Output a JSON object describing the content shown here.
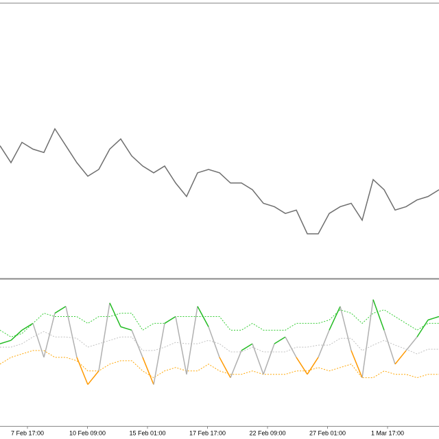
{
  "chart_data": [
    {
      "type": "line",
      "series": [
        {
          "color": "#6e6e6e",
          "values": [
            195,
            170,
            200,
            190,
            185,
            220,
            195,
            170,
            150,
            160,
            190,
            205,
            180,
            165,
            155,
            165,
            140,
            120,
            155,
            160,
            155,
            140,
            140,
            130,
            110,
            105,
            95,
            100,
            65,
            65,
            95,
            105,
            110,
            85,
            145,
            130,
            100,
            105,
            115,
            120,
            130
          ]
        }
      ],
      "ylim": [
        0,
        400
      ]
    },
    {
      "type": "oscillator",
      "series": [
        {
          "color": "#b0b0b0",
          "up_color": "#22bb22",
          "down_color": "#ff9900",
          "values": [
            120,
            125,
            140,
            150,
            100,
            165,
            175,
            100,
            60,
            80,
            180,
            145,
            140,
            100,
            60,
            150,
            160,
            75,
            175,
            145,
            100,
            70,
            110,
            120,
            75,
            120,
            130,
            100,
            75,
            100,
            140,
            175,
            110,
            70,
            185,
            140,
            90,
            110,
            130,
            155,
            160
          ]
        },
        {
          "color": "#33cc33",
          "dotted": true,
          "values": [
            140,
            130,
            135,
            150,
            165,
            160,
            160,
            160,
            150,
            160,
            160,
            165,
            165,
            140,
            150,
            150,
            160,
            160,
            160,
            160,
            160,
            140,
            140,
            150,
            140,
            140,
            140,
            150,
            150,
            150,
            155,
            170,
            165,
            150,
            165,
            170,
            160,
            150,
            140,
            150,
            150
          ]
        },
        {
          "color": "#c0c0c0",
          "dotted": true,
          "values": [
            115,
            115,
            120,
            130,
            138,
            130,
            130,
            128,
            115,
            120,
            125,
            130,
            130,
            110,
            110,
            115,
            122,
            120,
            120,
            125,
            120,
            108,
            108,
            115,
            108,
            108,
            108,
            115,
            115,
            118,
            118,
            128,
            128,
            110,
            118,
            125,
            118,
            112,
            105,
            112,
            112
          ]
        },
        {
          "color": "#ffa500",
          "dotted": true,
          "values": [
            90,
            100,
            105,
            110,
            110,
            100,
            100,
            95,
            80,
            80,
            90,
            95,
            95,
            80,
            70,
            80,
            85,
            80,
            80,
            90,
            80,
            75,
            75,
            80,
            75,
            75,
            75,
            80,
            80,
            85,
            80,
            85,
            90,
            70,
            70,
            80,
            75,
            75,
            70,
            75,
            75
          ]
        }
      ],
      "ylim": [
        0,
        210
      ]
    }
  ],
  "time_axis": {
    "labels": [
      "7 Feb 17:00",
      "10 Feb 09:00",
      "15 Feb 01:00",
      "17 Feb 17:00",
      "22 Feb 09:00",
      "27 Feb 01:00",
      "1 Mar 17:00"
    ]
  }
}
